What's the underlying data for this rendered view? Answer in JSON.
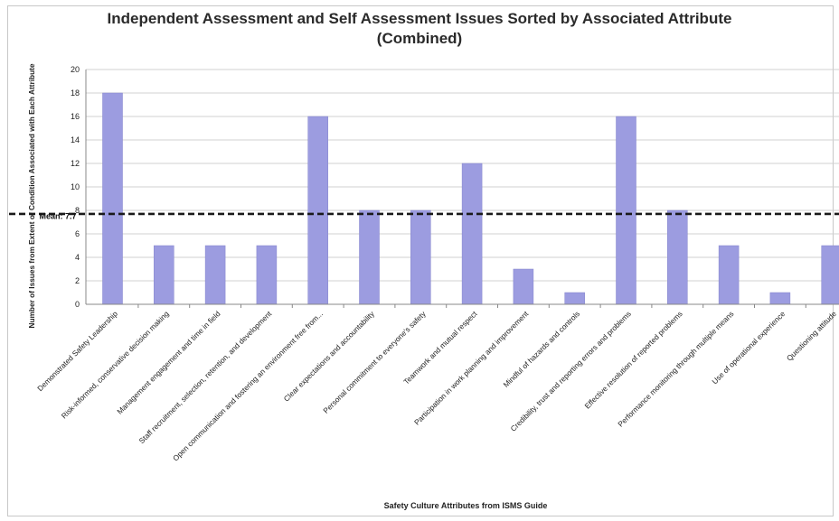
{
  "chart_data": {
    "type": "bar",
    "title_line1": "Independent Assessment and Self Assessment Issues Sorted by Associated Attribute",
    "title_line2": "(Combined)",
    "xlabel": "Safety Culture Attributes from ISMS Guide",
    "ylabel": "Number of Issues from Extent of Condition Associated with Each Attribute",
    "ylim": [
      0,
      20
    ],
    "yticks": [
      "0",
      "2",
      "4",
      "6",
      "8",
      "10",
      "12",
      "14",
      "16",
      "18",
      "20"
    ],
    "grid": true,
    "bar_color": "#9c9ce0",
    "mean_value": 7.7,
    "mean_label": "Mean: 7.7",
    "categories": [
      "Demonstrated Safety Leadership",
      "Risk-informed, conservative decision making",
      "Management engagement and time in field",
      "Staff recruitment, selection, retention, and development",
      "Open communication and fostering an environment free from...",
      "Clear expectations and accountability",
      "Personal commitment to everyone's safety",
      "Teamwork and mutual respect",
      "Participation in work planning and improvement",
      "Mindful of hazards and controls",
      "Credibility, trust and reporting errors and problems",
      "Effective resolution of reported problems",
      "Performance monitoring through multiple means",
      "Use of operational experience",
      "Questioning attitude"
    ],
    "values": [
      18,
      5,
      5,
      5,
      16,
      8,
      8,
      12,
      3,
      1,
      16,
      8,
      5,
      1,
      5
    ]
  }
}
